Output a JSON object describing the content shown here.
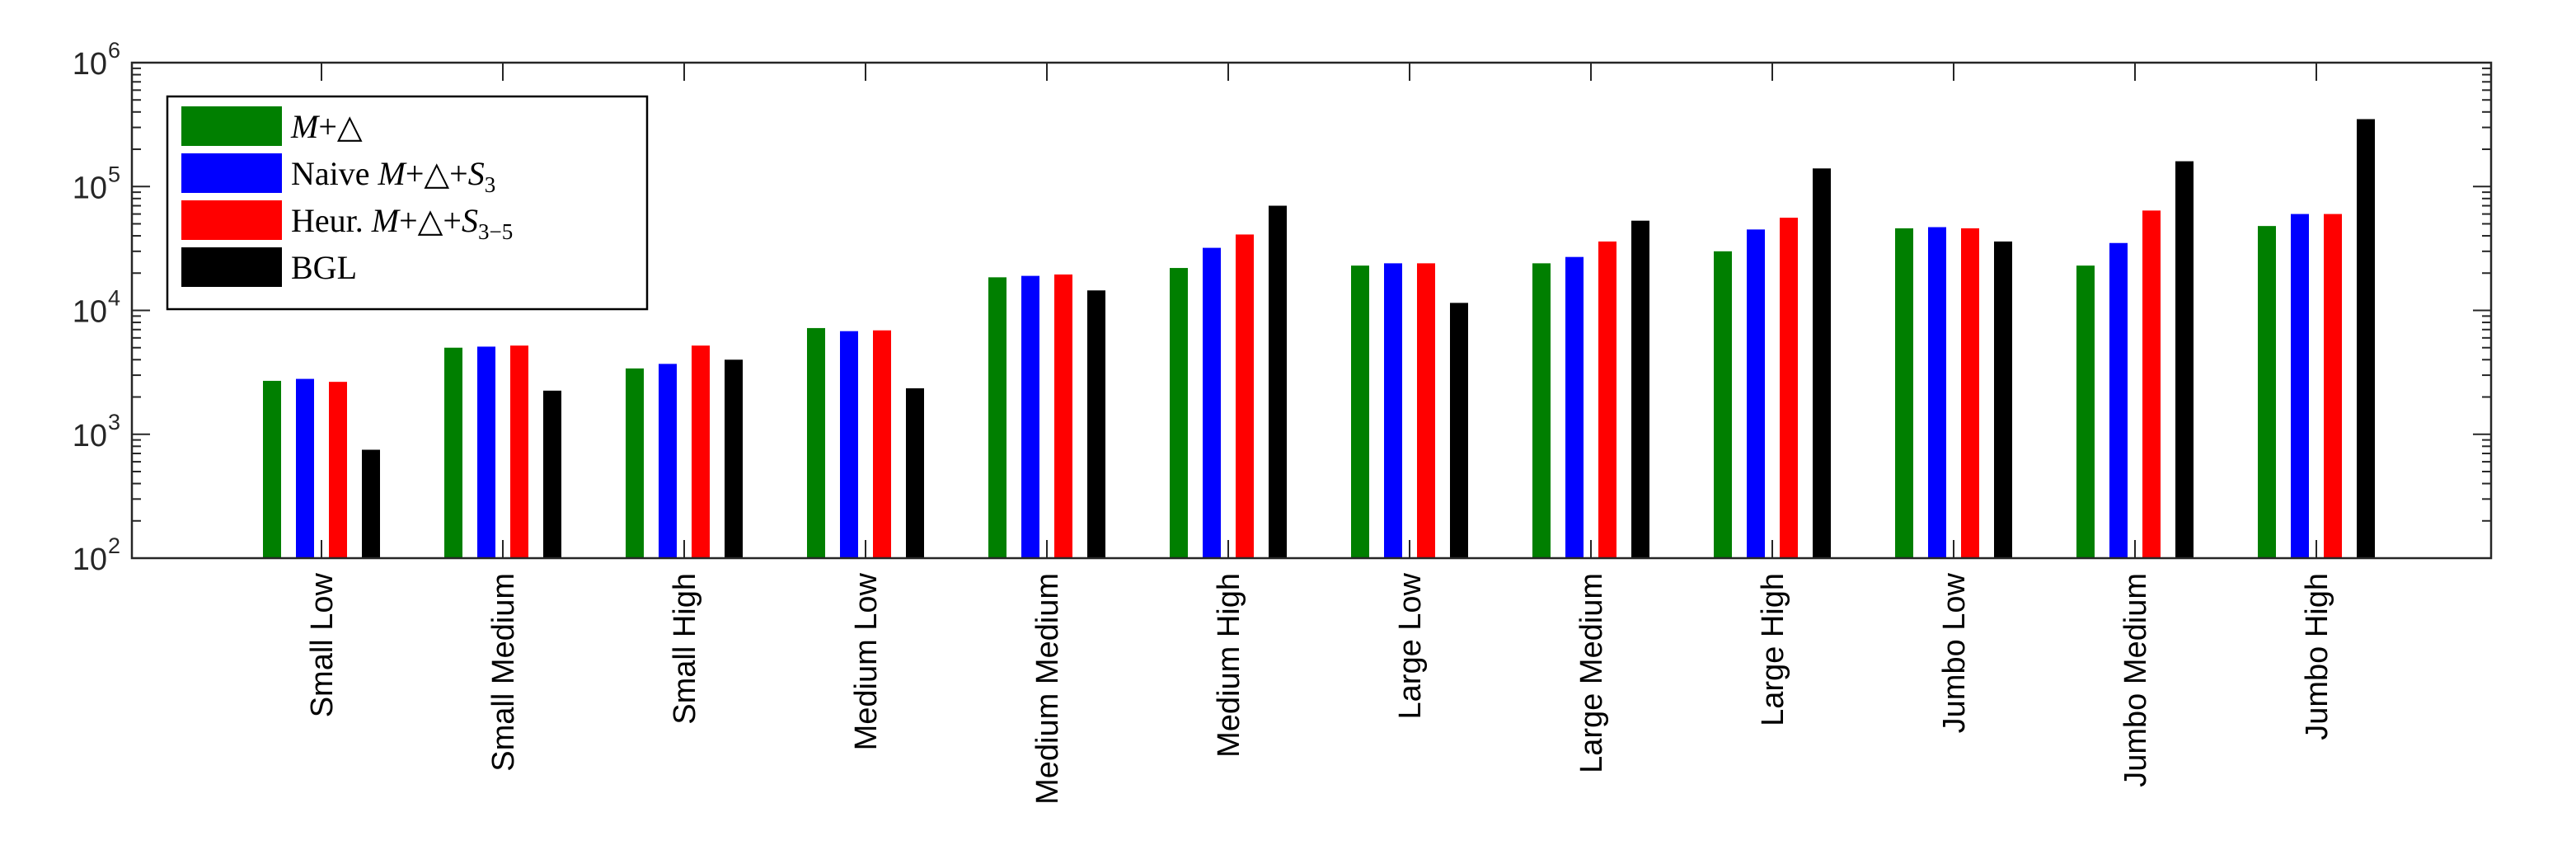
{
  "chart_data": {
    "type": "bar",
    "yscale": "log",
    "ylim": [
      100,
      1000000
    ],
    "yticks": [
      {
        "value": 100,
        "base": "10",
        "exp": "2"
      },
      {
        "value": 1000,
        "base": "10",
        "exp": "3"
      },
      {
        "value": 10000,
        "base": "10",
        "exp": "4"
      },
      {
        "value": 100000,
        "base": "10",
        "exp": "5"
      },
      {
        "value": 1000000,
        "base": "10",
        "exp": "6"
      }
    ],
    "categories": [
      "Small Low",
      "Small Medium",
      "Small High",
      "Medium Low",
      "Medium Medium",
      "Medium High",
      "Large Low",
      "Large Medium",
      "Large High",
      "Jumbo Low",
      "Jumbo Medium",
      "Jumbo High"
    ],
    "series": [
      {
        "name": "M+△",
        "color": "#007f00",
        "values": [
          2700,
          5000,
          3400,
          7200,
          18500,
          22000,
          23000,
          24000,
          30000,
          46000,
          23000,
          48000
        ]
      },
      {
        "name": "Naive M+△+S3",
        "color": "#0000ff",
        "values": [
          2800,
          5100,
          3700,
          6800,
          19000,
          32000,
          24000,
          27000,
          45000,
          47000,
          35000,
          60000
        ]
      },
      {
        "name": "Heur. M+△+S3−5",
        "color": "#ff0000",
        "values": [
          2650,
          5200,
          5200,
          6900,
          19500,
          41000,
          24000,
          36000,
          56000,
          46000,
          64000,
          60000
        ]
      },
      {
        "name": "BGL",
        "color": "#000000",
        "values": [
          750,
          2250,
          4000,
          2350,
          14500,
          70000,
          11500,
          53000,
          140000,
          36000,
          160000,
          350000
        ]
      }
    ],
    "legend": {
      "position": "top-left",
      "entries": [
        {
          "prefix": "",
          "script": "M",
          "ops": "+△",
          "script2": "",
          "sub": ""
        },
        {
          "prefix": "Naive ",
          "script": "M",
          "ops": "+△+",
          "script2": "S",
          "sub": "3"
        },
        {
          "prefix": "Heur. ",
          "script": "M",
          "ops": "+△+",
          "script2": "S",
          "sub": "3−5"
        },
        {
          "prefix": "BGL",
          "script": "",
          "ops": "",
          "script2": "",
          "sub": ""
        }
      ]
    },
    "grid": false
  }
}
